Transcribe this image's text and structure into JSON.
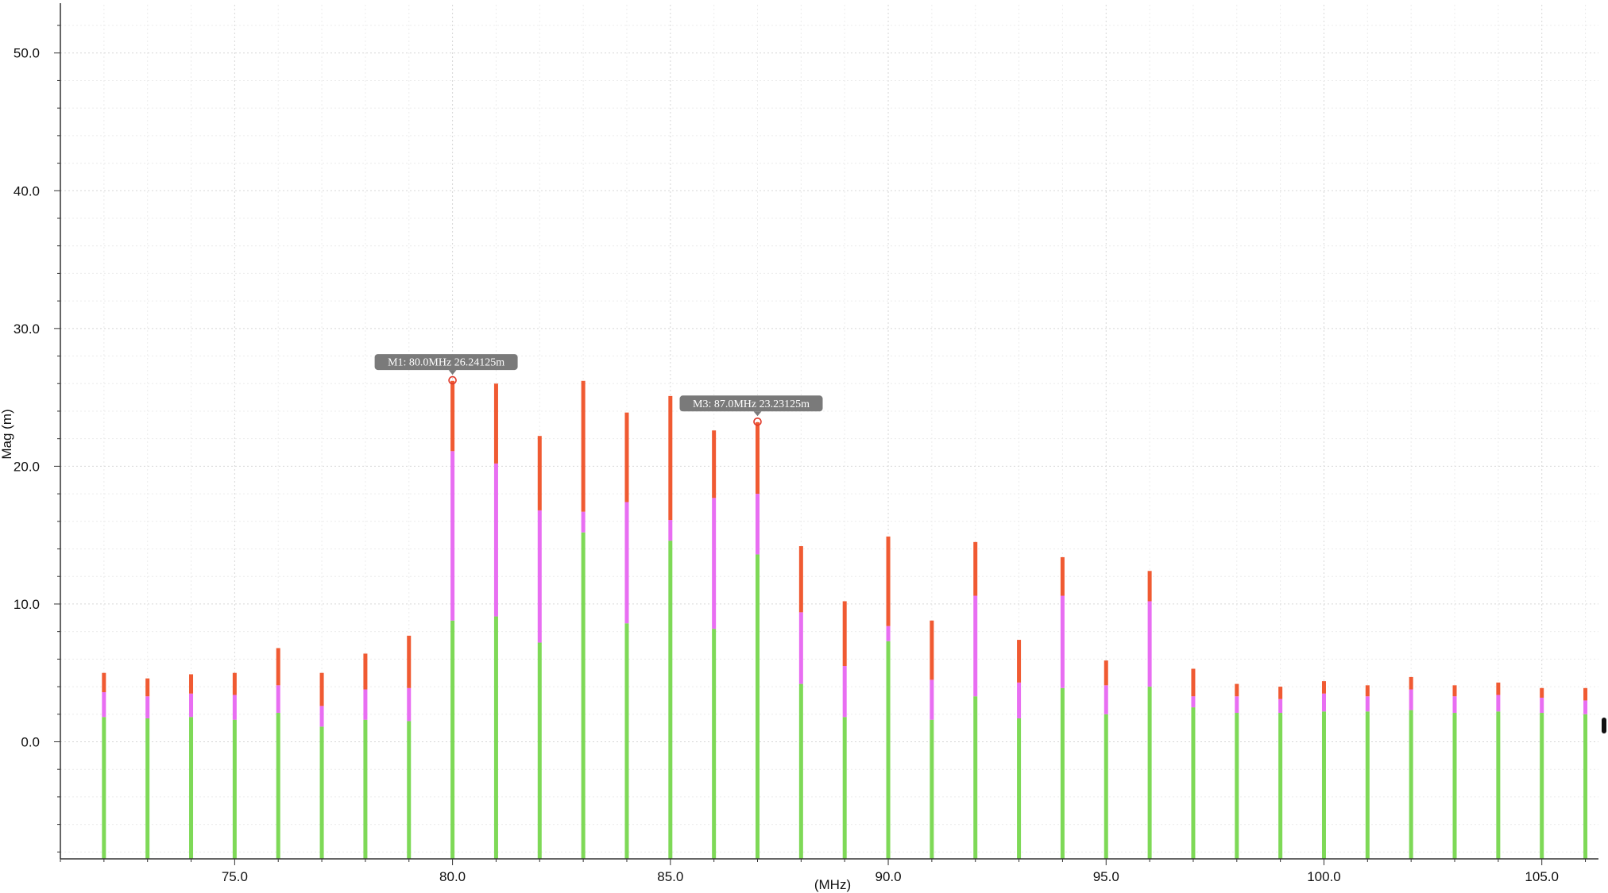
{
  "chart_data": {
    "type": "bar",
    "title": "",
    "xlabel": "(MHz)",
    "ylabel": "Mag (m)",
    "xlim": [
      71.0,
      106.3
    ],
    "ylim": [
      -8.5,
      53.5
    ],
    "xticks": [
      75.0,
      80.0,
      85.0,
      90.0,
      95.0,
      100.0,
      105.0
    ],
    "xtick_labels": [
      "75.0",
      "80.0",
      "85.0",
      "90.0",
      "95.0",
      "100.0",
      "105.0"
    ],
    "yticks": [
      0.0,
      10.0,
      20.0,
      30.0,
      40.0,
      50.0
    ],
    "ytick_labels": [
      "0.0",
      "10.0",
      "20.0",
      "30.0",
      "40.0",
      "50.0"
    ],
    "grid": true,
    "stacked": true,
    "base": -8.5,
    "colors": [
      "#7ed957",
      "#e86ef2",
      "#f05a32"
    ],
    "x": [
      72,
      73,
      74,
      75,
      76,
      77,
      78,
      79,
      80,
      81,
      82,
      83,
      84,
      85,
      86,
      87,
      88,
      89,
      90,
      91,
      92,
      93,
      94,
      95,
      96,
      97,
      98,
      99,
      100,
      101,
      102,
      103,
      104,
      105,
      106
    ],
    "segments": [
      [
        [
          1.8,
          1.8,
          1.4
        ],
        [
          1.7,
          1.6,
          1.3
        ],
        [
          1.8,
          1.7,
          1.4
        ],
        [
          1.6,
          1.8,
          1.6
        ],
        [
          2.1,
          2.0,
          2.7
        ],
        [
          1.1,
          1.5,
          2.4
        ],
        [
          1.6,
          2.2,
          2.6
        ],
        [
          1.5,
          2.4,
          3.8
        ],
        [
          8.8,
          12.3,
          5.1
        ],
        [
          9.1,
          11.1,
          5.8
        ],
        [
          7.2,
          9.6,
          5.4
        ],
        [
          15.2,
          1.5,
          9.5
        ],
        [
          8.6,
          8.8,
          6.5
        ],
        [
          14.6,
          1.5,
          9.0
        ],
        [
          8.2,
          9.5,
          4.9
        ],
        [
          13.6,
          4.4,
          5.2
        ],
        [
          4.2,
          5.2,
          4.8
        ],
        [
          1.8,
          3.7,
          4.7
        ],
        [
          7.3,
          1.1,
          6.5
        ],
        [
          1.6,
          2.9,
          4.3
        ],
        [
          3.3,
          7.3,
          3.9
        ],
        [
          1.7,
          2.6,
          3.1
        ],
        [
          3.9,
          6.7,
          2.8
        ],
        [
          2.0,
          2.1,
          1.8
        ],
        [
          4.0,
          6.2,
          2.2
        ],
        [
          2.5,
          0.8,
          2.0
        ],
        [
          2.1,
          1.2,
          0.9
        ],
        [
          2.1,
          1.0,
          0.9
        ],
        [
          2.2,
          1.3,
          0.9
        ],
        [
          2.2,
          1.1,
          0.8
        ],
        [
          2.3,
          1.5,
          0.9
        ],
        [
          2.1,
          1.2,
          0.8
        ],
        [
          2.2,
          1.2,
          0.9
        ],
        [
          2.1,
          1.1,
          0.7
        ],
        [
          2.0,
          1.0,
          0.9
        ]
      ]
    ],
    "totals": [
      5.0,
      4.6,
      4.9,
      5.0,
      6.8,
      5.0,
      6.4,
      7.7,
      26.24,
      26.0,
      22.2,
      26.2,
      23.9,
      25.1,
      22.6,
      23.23,
      14.2,
      10.2,
      14.9,
      8.8,
      14.5,
      7.4,
      13.4,
      5.9,
      12.4,
      5.3,
      4.2,
      4.0,
      4.4,
      4.1,
      4.7,
      4.1,
      4.3,
      3.8,
      3.9
    ],
    "annotations": [
      {
        "label": "M1: 80.0MHz 26.24125m",
        "x": 80.0,
        "y": 26.24125
      },
      {
        "label": "M3: 87.0MHz 23.23125m",
        "x": 87.0,
        "y": 23.23125
      }
    ]
  }
}
